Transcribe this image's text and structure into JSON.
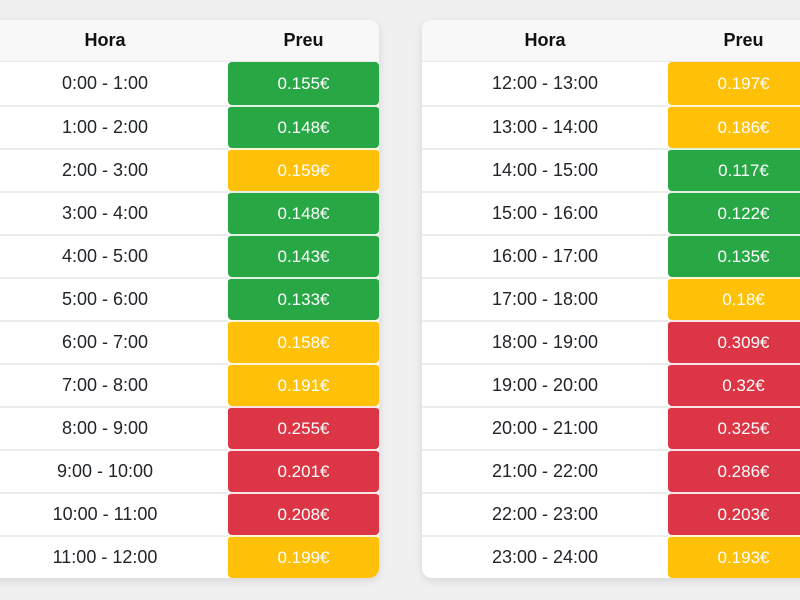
{
  "page": {
    "background": "#f0f0f1"
  },
  "colors": {
    "green": "#28a745",
    "yellow": "#ffc107",
    "red": "#dc3545"
  },
  "tables": [
    {
      "headers": {
        "hora": "Hora",
        "preu": "Preu"
      },
      "rows": [
        {
          "hora": "0:00 - 1:00",
          "preu": "0.155€",
          "level": "green"
        },
        {
          "hora": "1:00 - 2:00",
          "preu": "0.148€",
          "level": "green"
        },
        {
          "hora": "2:00 - 3:00",
          "preu": "0.159€",
          "level": "yellow"
        },
        {
          "hora": "3:00 - 4:00",
          "preu": "0.148€",
          "level": "green"
        },
        {
          "hora": "4:00 - 5:00",
          "preu": "0.143€",
          "level": "green"
        },
        {
          "hora": "5:00 - 6:00",
          "preu": "0.133€",
          "level": "green"
        },
        {
          "hora": "6:00 - 7:00",
          "preu": "0.158€",
          "level": "yellow"
        },
        {
          "hora": "7:00 - 8:00",
          "preu": "0.191€",
          "level": "yellow"
        },
        {
          "hora": "8:00 - 9:00",
          "preu": "0.255€",
          "level": "red"
        },
        {
          "hora": "9:00 - 10:00",
          "preu": "0.201€",
          "level": "red"
        },
        {
          "hora": "10:00 - 11:00",
          "preu": "0.208€",
          "level": "red"
        },
        {
          "hora": "11:00 - 12:00",
          "preu": "0.199€",
          "level": "yellow"
        }
      ]
    },
    {
      "headers": {
        "hora": "Hora",
        "preu": "Preu"
      },
      "rows": [
        {
          "hora": "12:00 - 13:00",
          "preu": "0.197€",
          "level": "yellow"
        },
        {
          "hora": "13:00 - 14:00",
          "preu": "0.186€",
          "level": "yellow"
        },
        {
          "hora": "14:00 - 15:00",
          "preu": "0.117€",
          "level": "green"
        },
        {
          "hora": "15:00 - 16:00",
          "preu": "0.122€",
          "level": "green"
        },
        {
          "hora": "16:00 - 17:00",
          "preu": "0.135€",
          "level": "green"
        },
        {
          "hora": "17:00 - 18:00",
          "preu": "0.18€",
          "level": "yellow"
        },
        {
          "hora": "18:00 - 19:00",
          "preu": "0.309€",
          "level": "red"
        },
        {
          "hora": "19:00 - 20:00",
          "preu": "0.32€",
          "level": "red"
        },
        {
          "hora": "20:00 - 21:00",
          "preu": "0.325€",
          "level": "red"
        },
        {
          "hora": "21:00 - 22:00",
          "preu": "0.286€",
          "level": "red"
        },
        {
          "hora": "22:00 - 23:00",
          "preu": "0.203€",
          "level": "red"
        },
        {
          "hora": "23:00 - 24:00",
          "preu": "0.193€",
          "level": "yellow"
        }
      ]
    }
  ]
}
